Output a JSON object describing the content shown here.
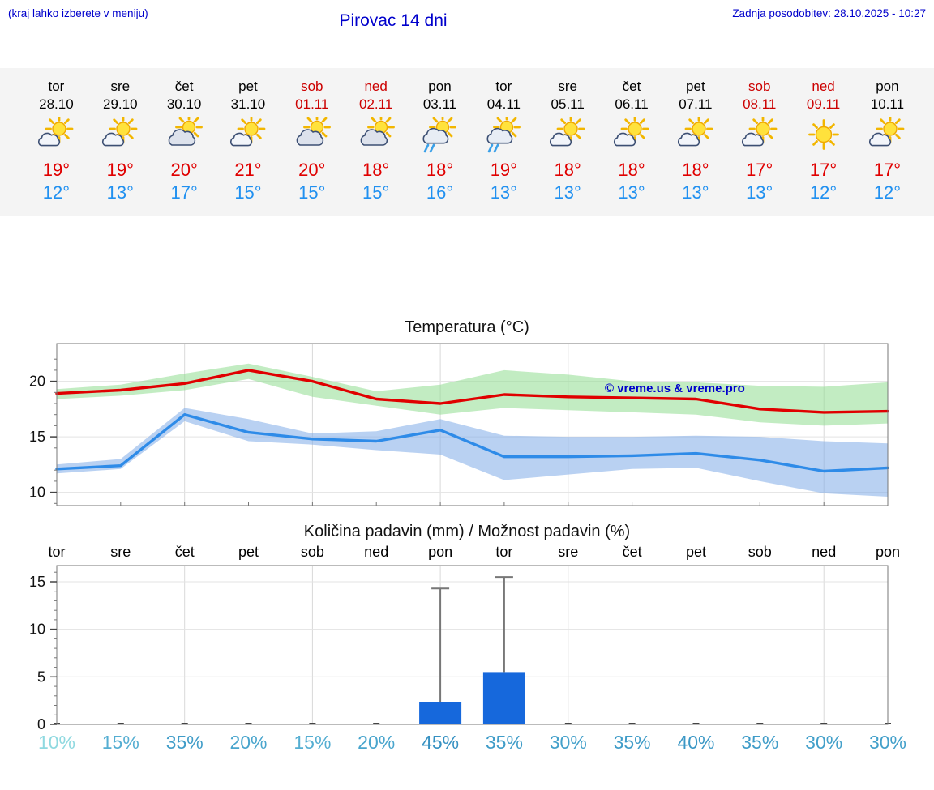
{
  "header": {
    "left_note": "(kraj lahko izberete v meniju)",
    "title": "Pirovac 14 dni",
    "last_update": "Zadnja posodobitev: 28.10.2025 - 10:27"
  },
  "colors": {
    "accent_blue": "#0000cc",
    "high_temp_red": "#e00000",
    "low_temp_blue": "#2090f0",
    "weekend_red": "#cc0000",
    "strip_background": "#f4f4f4"
  },
  "forecast": {
    "days": [
      {
        "day": "tor",
        "date": "28.10",
        "weekend": false,
        "icon": "sun-cloud",
        "high": "19°",
        "low": "12°"
      },
      {
        "day": "sre",
        "date": "29.10",
        "weekend": false,
        "icon": "sun-cloud",
        "high": "19°",
        "low": "13°"
      },
      {
        "day": "čet",
        "date": "30.10",
        "weekend": false,
        "icon": "cloud-sun",
        "high": "20°",
        "low": "17°"
      },
      {
        "day": "pet",
        "date": "31.10",
        "weekend": false,
        "icon": "sun-cloud",
        "high": "21°",
        "low": "15°"
      },
      {
        "day": "sob",
        "date": "01.11",
        "weekend": true,
        "icon": "cloud-sun",
        "high": "20°",
        "low": "15°"
      },
      {
        "day": "ned",
        "date": "02.11",
        "weekend": true,
        "icon": "cloud-sun",
        "high": "18°",
        "low": "15°"
      },
      {
        "day": "pon",
        "date": "03.11",
        "weekend": false,
        "icon": "sun-cloud-rain",
        "high": "18°",
        "low": "16°"
      },
      {
        "day": "tor",
        "date": "04.11",
        "weekend": false,
        "icon": "sun-cloud-rain",
        "high": "19°",
        "low": "13°"
      },
      {
        "day": "sre",
        "date": "05.11",
        "weekend": false,
        "icon": "sun-cloud",
        "high": "18°",
        "low": "13°"
      },
      {
        "day": "čet",
        "date": "06.11",
        "weekend": false,
        "icon": "sun-cloud",
        "high": "18°",
        "low": "13°"
      },
      {
        "day": "pet",
        "date": "07.11",
        "weekend": false,
        "icon": "sun-cloud",
        "high": "18°",
        "low": "13°"
      },
      {
        "day": "sob",
        "date": "08.11",
        "weekend": true,
        "icon": "sun-cloud",
        "high": "17°",
        "low": "13°"
      },
      {
        "day": "ned",
        "date": "09.11",
        "weekend": true,
        "icon": "sun",
        "high": "17°",
        "low": "12°"
      },
      {
        "day": "pon",
        "date": "10.11",
        "weekend": false,
        "icon": "sun-cloud",
        "high": "17°",
        "low": "12°"
      }
    ]
  },
  "chart_data": [
    {
      "type": "line",
      "title": "Temperatura (°C)",
      "x_days": [
        "tor 28.10",
        "sre 29.10",
        "čet 30.10",
        "pet 31.10",
        "sob 01.11",
        "ned 02.11",
        "pon 03.11",
        "tor 04.11",
        "sre 05.11",
        "čet 06.11",
        "pet 07.11",
        "sob 08.11",
        "ned 09.11",
        "pon 10.11"
      ],
      "ylim": [
        8.8,
        23.4
      ],
      "yticks": [
        10,
        15,
        20
      ],
      "grid": true,
      "legend": "none",
      "watermark": "© vreme.us & vreme.pro",
      "series": [
        {
          "name": "max temperature",
          "color": "#e00000",
          "values": [
            18.9,
            19.2,
            19.8,
            21.0,
            20.0,
            18.4,
            18.0,
            18.8,
            18.6,
            18.5,
            18.4,
            17.5,
            17.2,
            17.3
          ]
        },
        {
          "name": "min temperature",
          "color": "#2e8be8",
          "values": [
            12.1,
            12.4,
            17.0,
            15.4,
            14.8,
            14.6,
            15.6,
            13.2,
            13.2,
            13.3,
            13.5,
            12.9,
            11.9,
            12.2
          ]
        }
      ],
      "bands": [
        {
          "name": "max temperature range",
          "color": "#8fdc8f",
          "upper": [
            19.3,
            19.7,
            20.7,
            21.6,
            20.4,
            19.1,
            19.7,
            21.0,
            20.6,
            20.0,
            19.9,
            19.6,
            19.5,
            19.9
          ],
          "lower": [
            18.4,
            18.7,
            19.2,
            20.2,
            18.6,
            17.8,
            17.0,
            17.6,
            17.4,
            17.2,
            17.0,
            16.3,
            16.0,
            16.2
          ]
        },
        {
          "name": "min temperature range",
          "color": "#7fabe8",
          "upper": [
            12.5,
            13.0,
            17.6,
            16.6,
            15.3,
            15.5,
            16.6,
            15.1,
            15.0,
            15.0,
            15.1,
            15.0,
            14.6,
            14.4
          ],
          "lower": [
            11.7,
            12.1,
            16.4,
            14.6,
            14.3,
            13.8,
            13.4,
            11.1,
            11.6,
            12.1,
            12.2,
            11.0,
            9.9,
            9.6
          ]
        }
      ]
    },
    {
      "type": "bar",
      "title": "Količina padavin (mm) / Možnost padavin (%)",
      "categories": [
        "tor",
        "sre",
        "čet",
        "pet",
        "sob",
        "ned",
        "pon",
        "tor",
        "sre",
        "čet",
        "pet",
        "sob",
        "ned",
        "pon"
      ],
      "values": [
        0,
        0,
        0,
        0,
        0,
        0,
        2.3,
        5.5,
        0,
        0,
        0,
        0,
        0,
        0
      ],
      "whisker_max": [
        0,
        0,
        0,
        0,
        0,
        0,
        14.3,
        15.5,
        0,
        0,
        0,
        0,
        0,
        0
      ],
      "probability_percent": [
        10,
        15,
        35,
        20,
        15,
        20,
        45,
        35,
        30,
        35,
        40,
        35,
        30,
        30
      ],
      "probability_colors": [
        "#8fd9e0",
        "#55aed2",
        "#3f9cc8",
        "#49a5cd",
        "#55aed2",
        "#49a5cd",
        "#3691c2",
        "#3f9cc8",
        "#43a0ca",
        "#3f9cc8",
        "#3a97c5",
        "#3f9cc8",
        "#43a0ca",
        "#43a0ca"
      ],
      "ylim": [
        0,
        16.7
      ],
      "yticks": [
        0,
        5,
        10,
        15
      ],
      "grid": true,
      "bar_color": "#1668dc",
      "whisker_color": "#777777"
    }
  ]
}
